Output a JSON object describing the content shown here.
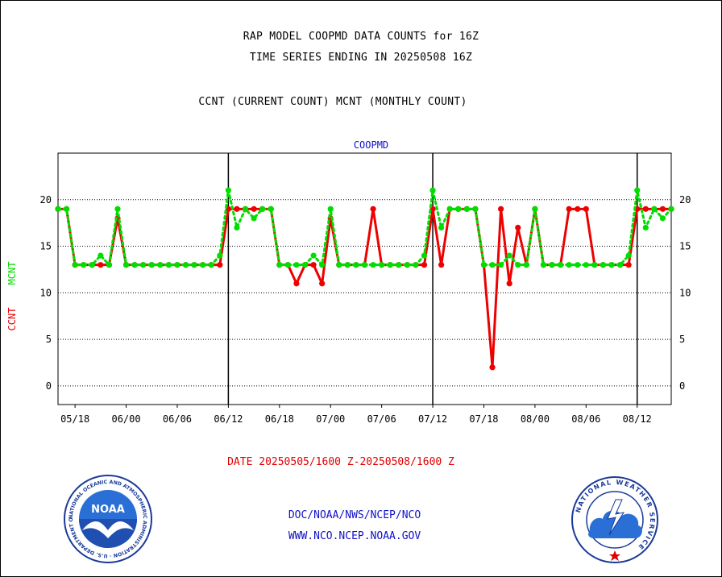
{
  "header": {
    "title_line1": "RAP MODEL COOPMD DATA COUNTS for 16Z",
    "title_line2": "TIME SERIES ENDING IN 20250508 16Z",
    "subtitle": "CCNT (CURRENT COUNT) MCNT (MONTHLY COUNT)"
  },
  "footer": {
    "date_range": "DATE 20250505/1600 Z-20250508/1600 Z",
    "credit_line1": "DOC/NOAA/NWS/NCEP/NCO",
    "credit_line2": "WWW.NCO.NCEP.NOAA.GOV"
  },
  "logos": {
    "left": {
      "name": "NOAA",
      "ring_text": "NATIONAL OCEANIC AND ATMOSPHERIC ADMINISTRATION · U.S. DEPARTMENT OF COMMERCE"
    },
    "right": {
      "ring_text": "NATIONAL WEATHER SERVICE"
    }
  },
  "colors": {
    "ccnt": "#ee0000",
    "mcnt": "#00dd00",
    "panel_title": "#1010c8",
    "axis": "#000000"
  },
  "chart_data": {
    "type": "line",
    "panel_title": "COOPMD",
    "ylabel_ccnt": "CCNT",
    "ylabel_mcnt": "MCNT",
    "ylim": [
      -2,
      25
    ],
    "yticks": [
      0,
      5,
      10,
      15,
      20
    ],
    "xlim": [
      -2,
      70
    ],
    "xtick_labels": [
      "05/18",
      "06/00",
      "06/06",
      "06/12",
      "06/18",
      "07/00",
      "07/06",
      "07/12",
      "07/18",
      "08/00",
      "08/06",
      "08/12"
    ],
    "xtick_hours": [
      0,
      6,
      12,
      18,
      24,
      30,
      36,
      42,
      48,
      54,
      60,
      66
    ],
    "day_boundaries_hours": [
      18,
      42,
      66
    ],
    "grid": "horizontal dotted",
    "series": [
      {
        "name": "CCNT",
        "color": "#ee0000",
        "points": [
          [
            -2,
            19
          ],
          [
            -1,
            19
          ],
          [
            0,
            13
          ],
          [
            1,
            13
          ],
          [
            2,
            13
          ],
          [
            3,
            13
          ],
          [
            4,
            13
          ],
          [
            5,
            18
          ],
          [
            6,
            13
          ],
          [
            7,
            13
          ],
          [
            8,
            13
          ],
          [
            9,
            13
          ],
          [
            10,
            13
          ],
          [
            11,
            13
          ],
          [
            12,
            13
          ],
          [
            13,
            13
          ],
          [
            14,
            13
          ],
          [
            15,
            13
          ],
          [
            16,
            13
          ],
          [
            17,
            13
          ],
          [
            18,
            19
          ],
          [
            19,
            19
          ],
          [
            20,
            19
          ],
          [
            21,
            19
          ],
          [
            22,
            19
          ],
          [
            23,
            19
          ],
          [
            24,
            13
          ],
          [
            25,
            13
          ],
          [
            26,
            11
          ],
          [
            27,
            13
          ],
          [
            28,
            13
          ],
          [
            29,
            11
          ],
          [
            30,
            18
          ],
          [
            31,
            13
          ],
          [
            32,
            13
          ],
          [
            33,
            13
          ],
          [
            34,
            13
          ],
          [
            35,
            19
          ],
          [
            36,
            13
          ],
          [
            37,
            13
          ],
          [
            38,
            13
          ],
          [
            39,
            13
          ],
          [
            40,
            13
          ],
          [
            41,
            13
          ],
          [
            42,
            19
          ],
          [
            43,
            13
          ],
          [
            44,
            19
          ],
          [
            45,
            19
          ],
          [
            46,
            19
          ],
          [
            47,
            19
          ],
          [
            48,
            13
          ],
          [
            49,
            2
          ],
          [
            50,
            19
          ],
          [
            51,
            11
          ],
          [
            52,
            17
          ],
          [
            53,
            13
          ],
          [
            54,
            19
          ],
          [
            55,
            13
          ],
          [
            56,
            13
          ],
          [
            57,
            13
          ],
          [
            58,
            19
          ],
          [
            59,
            19
          ],
          [
            60,
            19
          ],
          [
            61,
            13
          ],
          [
            62,
            13
          ],
          [
            63,
            13
          ],
          [
            64,
            13
          ],
          [
            65,
            13
          ],
          [
            66,
            19
          ],
          [
            67,
            19
          ],
          [
            68,
            19
          ],
          [
            69,
            19
          ],
          [
            70,
            19
          ]
        ]
      },
      {
        "name": "MCNT",
        "color": "#00dd00",
        "points": [
          [
            -2,
            19
          ],
          [
            -1,
            19
          ],
          [
            0,
            13
          ],
          [
            1,
            13
          ],
          [
            2,
            13
          ],
          [
            3,
            14
          ],
          [
            4,
            13
          ],
          [
            5,
            19
          ],
          [
            6,
            13
          ],
          [
            7,
            13
          ],
          [
            8,
            13
          ],
          [
            9,
            13
          ],
          [
            10,
            13
          ],
          [
            11,
            13
          ],
          [
            12,
            13
          ],
          [
            13,
            13
          ],
          [
            14,
            13
          ],
          [
            15,
            13
          ],
          [
            16,
            13
          ],
          [
            17,
            14
          ],
          [
            18,
            21
          ],
          [
            19,
            17
          ],
          [
            20,
            19
          ],
          [
            21,
            18
          ],
          [
            22,
            19
          ],
          [
            23,
            19
          ],
          [
            24,
            13
          ],
          [
            25,
            13
          ],
          [
            26,
            13
          ],
          [
            27,
            13
          ],
          [
            28,
            14
          ],
          [
            29,
            13
          ],
          [
            30,
            19
          ],
          [
            31,
            13
          ],
          [
            32,
            13
          ],
          [
            33,
            13
          ],
          [
            34,
            13
          ],
          [
            35,
            13
          ],
          [
            36,
            13
          ],
          [
            37,
            13
          ],
          [
            38,
            13
          ],
          [
            39,
            13
          ],
          [
            40,
            13
          ],
          [
            41,
            14
          ],
          [
            42,
            21
          ],
          [
            43,
            17
          ],
          [
            44,
            19
          ],
          [
            45,
            19
          ],
          [
            46,
            19
          ],
          [
            47,
            19
          ],
          [
            48,
            13
          ],
          [
            49,
            13
          ],
          [
            50,
            13
          ],
          [
            51,
            14
          ],
          [
            52,
            13
          ],
          [
            53,
            13
          ],
          [
            54,
            19
          ],
          [
            55,
            13
          ],
          [
            56,
            13
          ],
          [
            57,
            13
          ],
          [
            58,
            13
          ],
          [
            59,
            13
          ],
          [
            60,
            13
          ],
          [
            61,
            13
          ],
          [
            62,
            13
          ],
          [
            63,
            13
          ],
          [
            64,
            13
          ],
          [
            65,
            14
          ],
          [
            66,
            21
          ],
          [
            67,
            17
          ],
          [
            68,
            19
          ],
          [
            69,
            18
          ],
          [
            70,
            19
          ]
        ]
      }
    ]
  }
}
